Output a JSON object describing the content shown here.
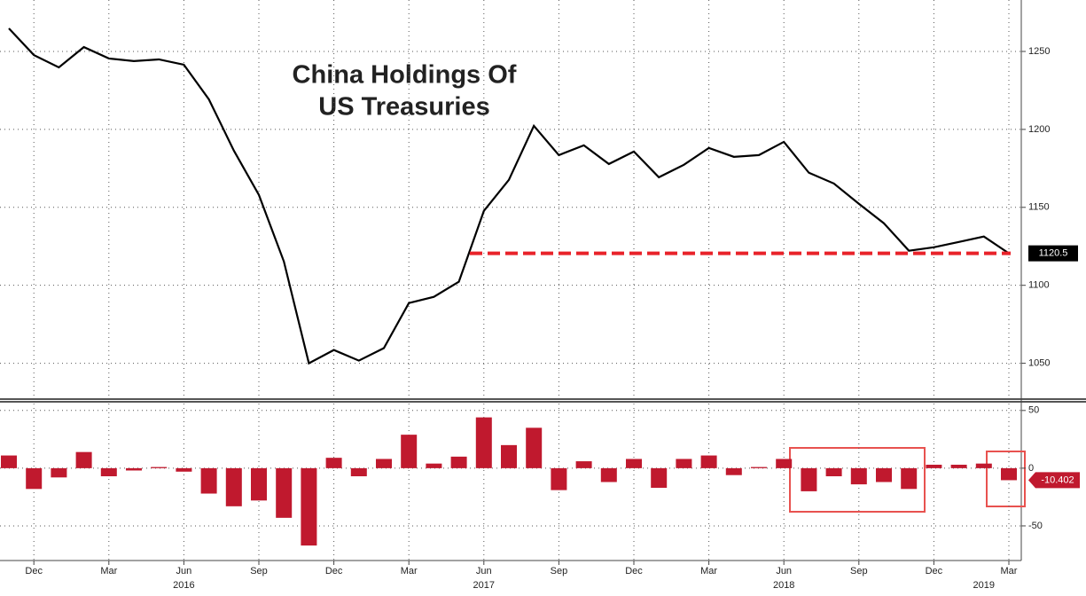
{
  "chart_data": [
    {
      "type": "line",
      "title": [
        "China Holdings Of",
        "US Treasuries"
      ],
      "categories": [
        null,
        "Dec",
        null,
        null,
        "Mar",
        null,
        null,
        "Jun",
        null,
        null,
        "Sep",
        null,
        null,
        "Dec",
        null,
        null,
        "Mar",
        null,
        null,
        "Jun",
        null,
        null,
        "Sep",
        null,
        null,
        "Dec",
        null,
        null,
        "Mar",
        null,
        null,
        "Jun",
        null,
        null,
        "Sep",
        null,
        null,
        "Dec",
        null,
        null,
        "Mar"
      ],
      "years": [
        null,
        null,
        null,
        null,
        null,
        null,
        null,
        "2016",
        null,
        null,
        null,
        null,
        null,
        null,
        null,
        null,
        null,
        null,
        null,
        "2017",
        null,
        null,
        null,
        null,
        null,
        null,
        null,
        null,
        null,
        null,
        null,
        "2018",
        null,
        null,
        null,
        null,
        null,
        null,
        null,
        "2019",
        null
      ],
      "series": [
        {
          "color": "#000000",
          "values": [
            1264.8,
            1247.7,
            1239.8,
            1252.8,
            1245.5,
            1243.8,
            1244.9,
            1241.5,
            1219.3,
            1186.4,
            1158,
            1115.3,
            1050,
            1058.5,
            1051.7,
            1059.7,
            1088.6,
            1092.6,
            1102.3,
            1147.7,
            1167.6,
            1202.3,
            1183.5,
            1189.8,
            1177.8,
            1185.8,
            1169.3,
            1177.3,
            1188.1,
            1182.4,
            1183.5,
            1192,
            1172.2,
            1165.3,
            1152.3,
            1139.8,
            1122.2,
            1124.4,
            1127.8,
            1131.3,
            1120.5
          ]
        }
      ],
      "reference_value": 1120.5,
      "reference_color": "#e8232a",
      "ylim": [
        1027,
        1283
      ],
      "yticks": [
        1050,
        1100,
        1150,
        1200,
        1250
      ],
      "grid": true
    },
    {
      "type": "bar",
      "series": [
        {
          "color": "#c0192e",
          "values": [
            11,
            -18,
            -8,
            14,
            -7,
            -2,
            1,
            -3,
            -22,
            -33,
            -28,
            -43,
            -67,
            9,
            -7,
            8,
            29,
            4,
            10,
            44,
            20,
            35,
            -19,
            6,
            -12,
            8,
            -17,
            8,
            11,
            -6,
            1,
            8,
            -20,
            -7,
            -14,
            -12,
            -18,
            3,
            3,
            4,
            -10.402
          ]
        }
      ],
      "ylim": [
        -80,
        56
      ],
      "yticks": [
        -50,
        0,
        50
      ],
      "grid": true
    }
  ]
}
